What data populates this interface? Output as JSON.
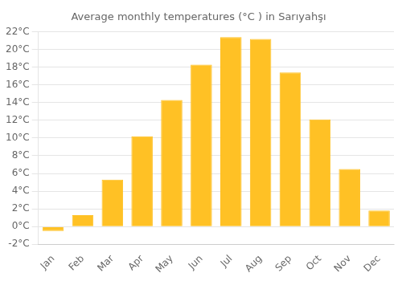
{
  "chart_data": {
    "type": "bar",
    "title": "Average monthly temperatures (°C ) in Sarıyahşı",
    "categories": [
      "Jan",
      "Feb",
      "Mar",
      "Apr",
      "May",
      "Jun",
      "Jul",
      "Aug",
      "Sep",
      "Oct",
      "Nov",
      "Dec"
    ],
    "values": [
      -0.5,
      1.3,
      5.3,
      10.2,
      14.3,
      18.3,
      21.4,
      21.2,
      17.4,
      12.1,
      6.5,
      1.8
    ],
    "color": "#FFC125",
    "ylim": [
      -2,
      22
    ],
    "yticks": [
      {
        "value": -2,
        "label": "-2°C"
      },
      {
        "value": 0,
        "label": "0°C"
      },
      {
        "value": 2,
        "label": "2°C"
      },
      {
        "value": 4,
        "label": "4°C"
      },
      {
        "value": 6,
        "label": "6°C"
      },
      {
        "value": 8,
        "label": "8°C"
      },
      {
        "value": 10,
        "label": "10°C"
      },
      {
        "value": 12,
        "label": "12°C"
      },
      {
        "value": 14,
        "label": "14°C"
      },
      {
        "value": 16,
        "label": "16°C"
      },
      {
        "value": 18,
        "label": "18°C"
      },
      {
        "value": 20,
        "label": "20°C"
      },
      {
        "value": 22,
        "label": "22°C"
      }
    ],
    "grid": true
  }
}
